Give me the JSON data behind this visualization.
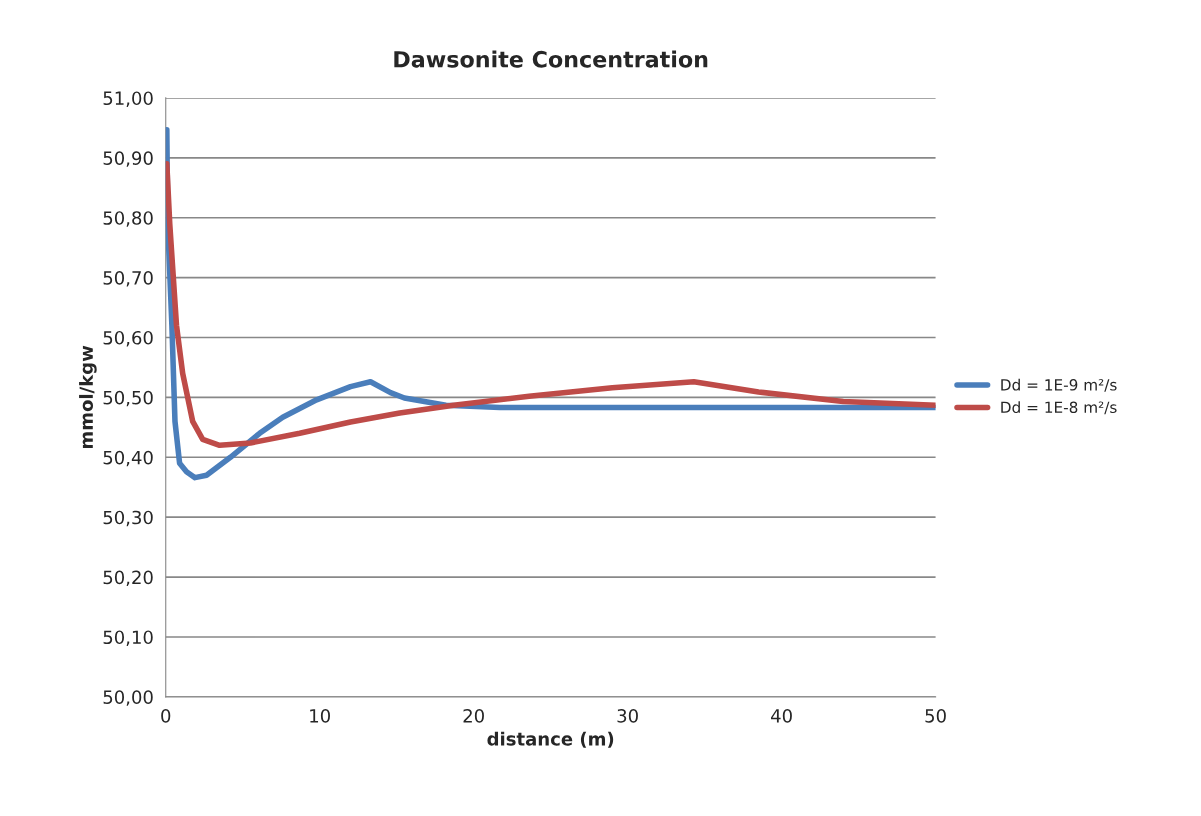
{
  "chart_data": {
    "type": "line",
    "title": "Dawsonite Concentration",
    "xlabel": "distance (m)",
    "ylabel": "mmol/kgw",
    "xlim": [
      0,
      50
    ],
    "xticks": [
      0,
      10,
      20,
      30,
      40,
      50
    ],
    "ylim": [
      50.0,
      51.0
    ],
    "yticks": [
      {
        "value": 50.0,
        "label": "50,00"
      },
      {
        "value": 50.1,
        "label": "50,10"
      },
      {
        "value": 50.2,
        "label": "50,20"
      },
      {
        "value": 50.3,
        "label": "50,30"
      },
      {
        "value": 50.4,
        "label": "50,40"
      },
      {
        "value": 50.5,
        "label": "50,50"
      },
      {
        "value": 50.6,
        "label": "50,60"
      },
      {
        "value": 50.7,
        "label": "50,70"
      },
      {
        "value": 50.8,
        "label": "50,80"
      },
      {
        "value": 50.9,
        "label": "50,90"
      },
      {
        "value": 51.0,
        "label": "51,00"
      }
    ],
    "grid": "y",
    "legend": "right",
    "marker": "none",
    "line_style": "solid",
    "series": [
      {
        "name": "Dd = 1E-9 m²/s",
        "color": "#4a7ebb",
        "x": [
          0.07,
          0.13,
          0.4,
          0.6,
          0.9,
          1.35,
          1.9,
          2.65,
          4.2,
          6.1,
          7.6,
          9.8,
          12,
          13.3,
          14.6,
          15.5,
          18.2,
          21.7,
          30,
          40,
          50
        ],
        "values": [
          50.947,
          50.79,
          50.62,
          50.46,
          50.39,
          50.376,
          50.366,
          50.37,
          50.4,
          50.44,
          50.467,
          50.496,
          50.518,
          50.526,
          50.508,
          50.499,
          50.487,
          50.483,
          50.483,
          50.483,
          50.483
        ]
      },
      {
        "name": "Dd = 1E-8 m²/s",
        "color": "#be4b48",
        "x": [
          0.07,
          0.26,
          0.7,
          1.1,
          1.75,
          2.4,
          3.5,
          5.5,
          8.7,
          12,
          15.2,
          18.7,
          23.6,
          29,
          34.3,
          38.5,
          44,
          50
        ],
        "values": [
          50.89,
          50.79,
          50.62,
          50.54,
          50.46,
          50.43,
          50.42,
          50.424,
          50.44,
          50.459,
          50.474,
          50.487,
          50.502,
          50.516,
          50.526,
          50.509,
          50.493,
          50.487
        ]
      }
    ]
  }
}
